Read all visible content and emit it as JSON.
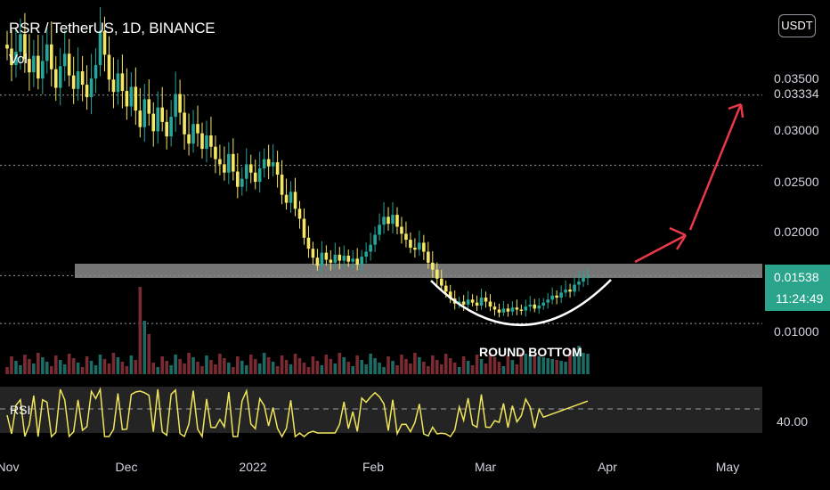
{
  "header": {
    "symbol_title": "RSR / TetherUS, 1D, BINANCE",
    "volume_label": "Vol",
    "currency_button": "USDT"
  },
  "last_price": {
    "value": "0.01538",
    "countdown": "11:24:49"
  },
  "annotation": {
    "text": "ROUND BOTTOM"
  },
  "rsi": {
    "label": "RSI",
    "level_label": "40.00"
  },
  "colors": {
    "bull": "#26a69a",
    "bear": "#f5e663",
    "vol_up": "#1c6b64",
    "vol_down": "#7a2b31",
    "rsi_line": "#f0e45a",
    "arrow": "#e8394a",
    "resistance_zone": "#8a8a8a",
    "price_tag_bg": "#2aa58c"
  },
  "chart_data": {
    "type": "candlestick",
    "title": "RSR / TetherUS, 1D, BINANCE",
    "x_ticks": [
      "Nov",
      "Dec",
      "2022",
      "Feb",
      "Mar",
      "Apr",
      "May"
    ],
    "y_ticks": [
      "0.03500",
      "0.03334",
      "0.03000",
      "0.02500",
      "0.02000",
      "0.01538",
      "0.01000"
    ],
    "y_range": [
      0.0035,
      0.0395
    ],
    "last_close": 0.01538,
    "horizontal_levels": [
      0.0333,
      0.0265,
      0.0155,
      0.0107
    ],
    "resistance_zone": [
      0.0148,
      0.0163
    ],
    "close_series": [
      0.0378,
      0.0362,
      0.0375,
      0.0392,
      0.0368,
      0.0355,
      0.0371,
      0.0349,
      0.0366,
      0.0382,
      0.0358,
      0.034,
      0.0361,
      0.0373,
      0.0352,
      0.0339,
      0.0356,
      0.0343,
      0.0331,
      0.0349,
      0.0362,
      0.0395,
      0.0372,
      0.0348,
      0.0336,
      0.0354,
      0.0337,
      0.0322,
      0.0341,
      0.0318,
      0.0302,
      0.0329,
      0.0315,
      0.0298,
      0.0321,
      0.0307,
      0.0293,
      0.0312,
      0.0334,
      0.0316,
      0.0295,
      0.0286,
      0.0305,
      0.0296,
      0.0281,
      0.0294,
      0.0283,
      0.0271,
      0.0266,
      0.0258,
      0.0276,
      0.0259,
      0.0244,
      0.0252,
      0.0266,
      0.0258,
      0.0249,
      0.0262,
      0.0271,
      0.0264,
      0.0268,
      0.0256,
      0.0236,
      0.0228,
      0.0239,
      0.0222,
      0.0212,
      0.0193,
      0.0182,
      0.0173,
      0.0165,
      0.0178,
      0.0171,
      0.0168,
      0.0176,
      0.017,
      0.0175,
      0.0169,
      0.0172,
      0.0166,
      0.0174,
      0.0179,
      0.0186,
      0.0196,
      0.0206,
      0.0214,
      0.0207,
      0.0216,
      0.0204,
      0.0197,
      0.0191,
      0.0183,
      0.0181,
      0.0188,
      0.0179,
      0.0168,
      0.0161,
      0.0152,
      0.0145,
      0.0139,
      0.0132,
      0.0127,
      0.0129,
      0.0126,
      0.0131,
      0.0128,
      0.0125,
      0.0133,
      0.0129,
      0.0124,
      0.0121,
      0.0118,
      0.0122,
      0.0119,
      0.0123,
      0.0121,
      0.012,
      0.0124,
      0.0126,
      0.0122,
      0.0125,
      0.0128,
      0.0131,
      0.0135,
      0.0133,
      0.0138,
      0.0141,
      0.0139,
      0.0146,
      0.0149,
      0.0153,
      0.01538
    ],
    "rsi_reference_level": 40.0,
    "projection": "upward arrows toward 0.03334"
  }
}
